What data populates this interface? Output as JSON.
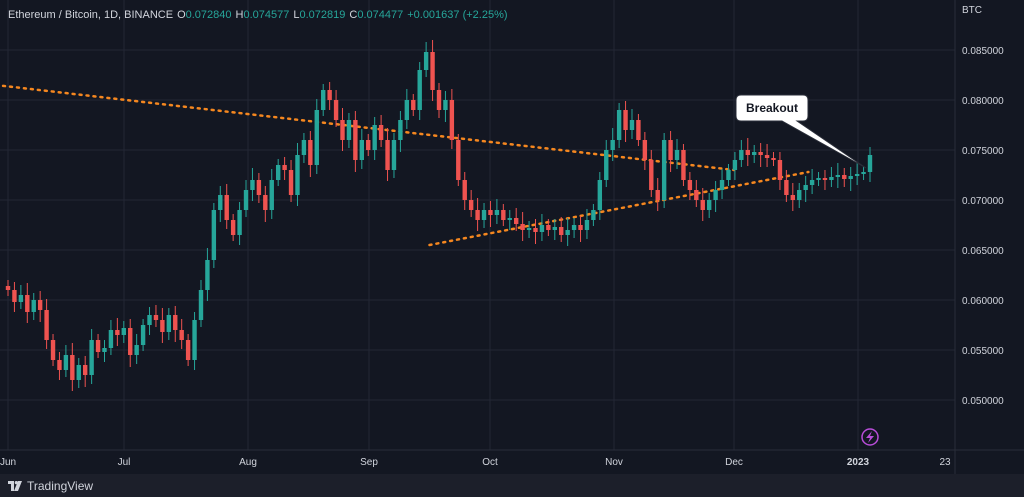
{
  "header": {
    "symbol": "Ethereum / Bitcoin, 1D, BINANCE",
    "o_label": "O",
    "o_value": "0.072840",
    "h_label": "H",
    "h_value": "0.074577",
    "l_label": "L",
    "l_value": "0.072819",
    "c_label": "C",
    "c_value": "0.074477",
    "change": "+0.001637 (+2.25%)"
  },
  "footer": {
    "brand": "TradingView"
  },
  "colors": {
    "up": "#26a69a",
    "down": "#ef5350",
    "trend": "#f5871f",
    "bg": "#131722",
    "grid": "#232734"
  },
  "chart_data": {
    "type": "candlestick",
    "yaxis_unit": "BTC",
    "y_ticks": [
      "0.085000",
      "0.080000",
      "0.075000",
      "0.070000",
      "0.065000",
      "0.060000",
      "0.055000",
      "0.050000"
    ],
    "x_ticks": [
      "Jun",
      "Jul",
      "Aug",
      "Sep",
      "Oct",
      "Nov",
      "Dec",
      "2023",
      "23"
    ],
    "ylim": [
      0.0445,
      0.089
    ],
    "annotation": "Breakout",
    "trendlines": [
      {
        "name": "upper",
        "from": [
          -3.1,
          0.0855
        ],
        "to": [
          6.0,
          0.073
        ]
      },
      {
        "name": "lower",
        "from": [
          3.5,
          0.0655
        ],
        "to": [
          6.6,
          0.0728
        ]
      }
    ],
    "closes": [
      0.061,
      0.0598,
      0.0605,
      0.0588,
      0.06,
      0.059,
      0.056,
      0.054,
      0.053,
      0.0545,
      0.052,
      0.0535,
      0.0525,
      0.056,
      0.0548,
      0.0552,
      0.057,
      0.0565,
      0.0572,
      0.0545,
      0.0555,
      0.0575,
      0.0585,
      0.058,
      0.0568,
      0.0585,
      0.057,
      0.056,
      0.054,
      0.058,
      0.061,
      0.064,
      0.069,
      0.0705,
      0.068,
      0.0665,
      0.069,
      0.071,
      0.072,
      0.0705,
      0.069,
      0.072,
      0.0735,
      0.073,
      0.0705,
      0.0745,
      0.076,
      0.0735,
      0.079,
      0.081,
      0.08,
      0.078,
      0.076,
      0.078,
      0.074,
      0.076,
      0.075,
      0.0775,
      0.076,
      0.073,
      0.076,
      0.078,
      0.08,
      0.079,
      0.083,
      0.0848,
      0.081,
      0.079,
      0.08,
      0.076,
      0.072,
      0.07,
      0.069,
      0.068,
      0.069,
      0.0685,
      0.069,
      0.068,
      0.0682,
      0.0676,
      0.067,
      0.0672,
      0.0668,
      0.0675,
      0.067,
      0.0673,
      0.0665,
      0.067,
      0.0675,
      0.067,
      0.068,
      0.069,
      0.072,
      0.075,
      0.076,
      0.079,
      0.077,
      0.078,
      0.076,
      0.074,
      0.071,
      0.07,
      0.076,
      0.074,
      0.075,
      0.072,
      0.071,
      0.07,
      0.069,
      0.07,
      0.071,
      0.072,
      0.073,
      0.074,
      0.075,
      0.0745,
      0.0748,
      0.0745,
      0.0742,
      0.074,
      0.072,
      0.0705,
      0.07,
      0.071,
      0.0715,
      0.072,
      0.0722,
      0.072,
      0.0723,
      0.0725,
      0.0721,
      0.0724,
      0.0726,
      0.0728,
      0.0745
    ]
  }
}
